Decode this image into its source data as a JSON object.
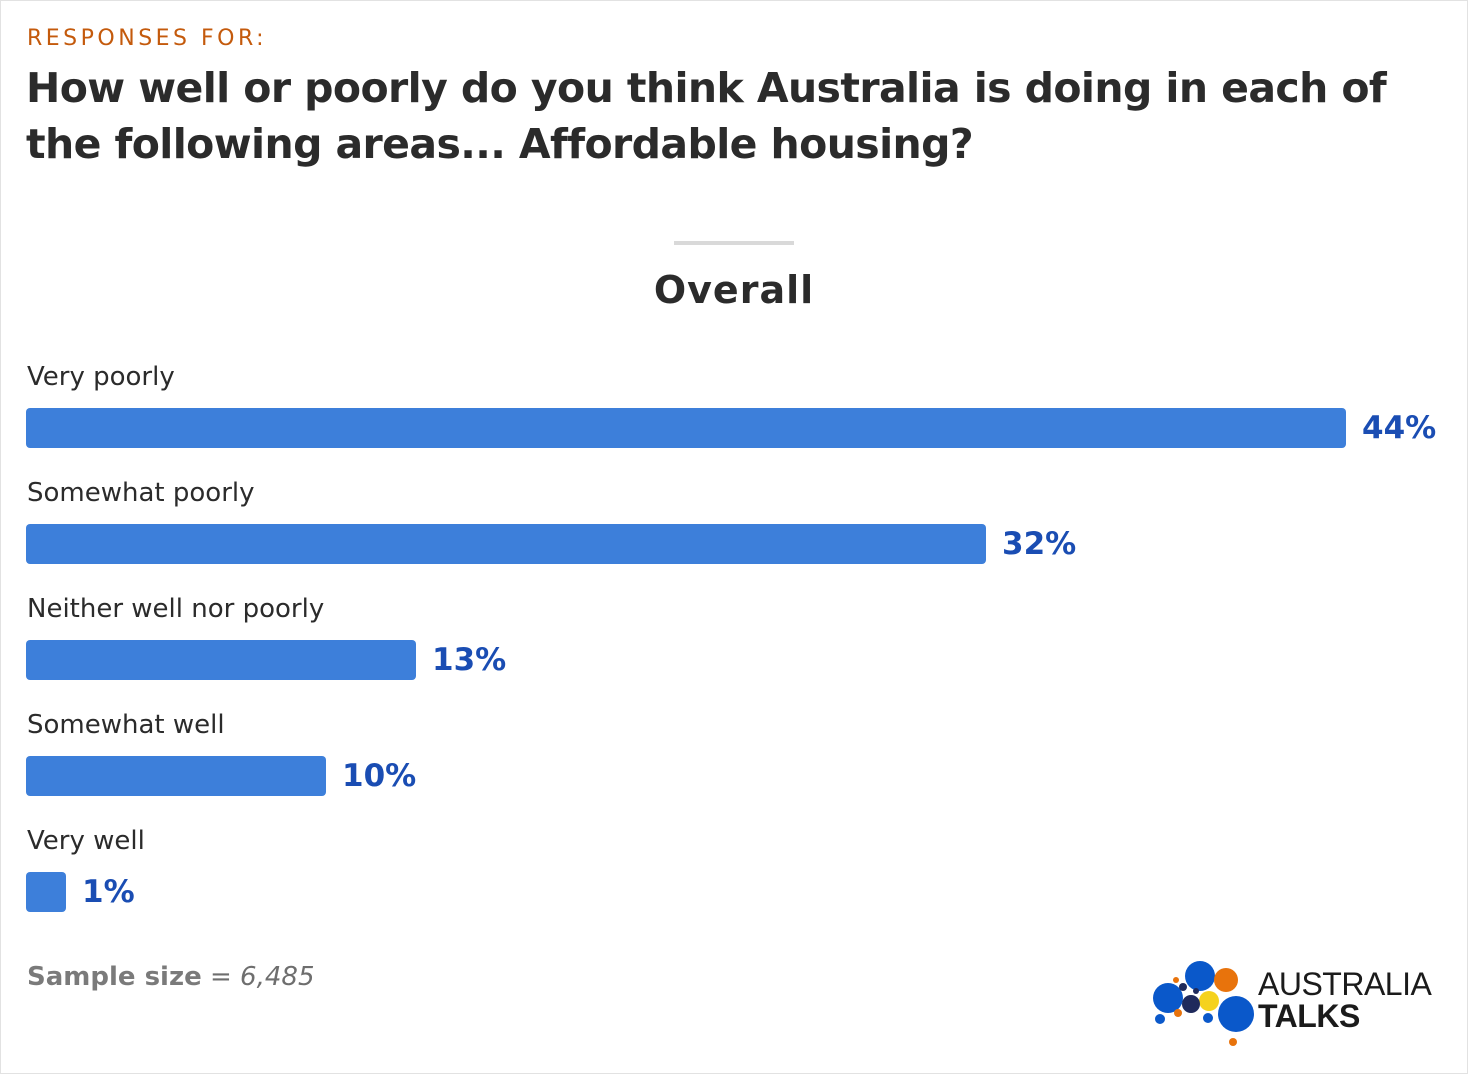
{
  "header": {
    "kicker": "RESPONSES FOR:",
    "title": "How well or poorly do you think Australia is doing in each of the following areas... Affordable housing?"
  },
  "colors": {
    "bar": "#3d7fda",
    "value_text": "#1a4db3",
    "kicker": "#c45a0c"
  },
  "chart_data": {
    "type": "bar",
    "orientation": "horizontal",
    "title": "Overall",
    "categories": [
      "Very poorly",
      "Somewhat poorly",
      "Neither well nor poorly",
      "Somewhat well",
      "Very well"
    ],
    "values": [
      44,
      32,
      13,
      10,
      1
    ],
    "value_labels": [
      "44%",
      "32%",
      "13%",
      "10%",
      "1%"
    ],
    "unit": "%",
    "xlim": [
      0,
      44
    ],
    "grid": false,
    "legend": "none"
  },
  "footer": {
    "sample_label": "Sample size",
    "sample_value": "= 6,485"
  },
  "logo": {
    "line1": "AUSTRALIA",
    "line2": "TALKS",
    "dot_colors": [
      "#0a58ca",
      "#e8730c",
      "#f5d21e",
      "#1f2a5c"
    ]
  }
}
